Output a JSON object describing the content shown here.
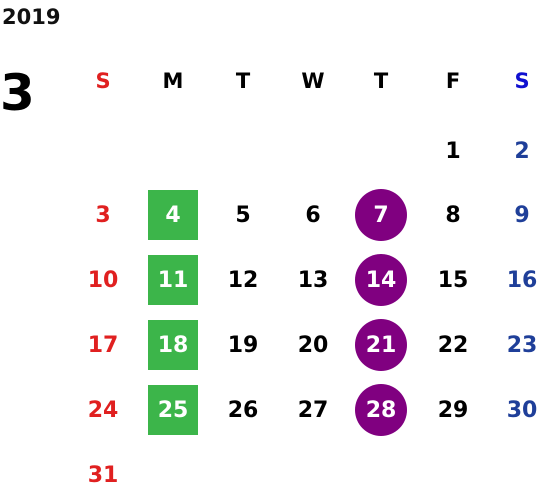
{
  "calendar": {
    "year": "2019",
    "month": "3",
    "weekdays": [
      "S",
      "M",
      "T",
      "W",
      "T",
      "F",
      "S"
    ],
    "colors": {
      "sunday": "#e02020",
      "saturday": "#1f3f99",
      "saturday_header": "#1010d0",
      "weekday": "#000000",
      "square_mark": "#3cb54a",
      "circle_mark": "#800080"
    },
    "weeks": [
      [
        {
          "d": ""
        },
        {
          "d": ""
        },
        {
          "d": ""
        },
        {
          "d": ""
        },
        {
          "d": ""
        },
        {
          "d": "1"
        },
        {
          "d": "2"
        }
      ],
      [
        {
          "d": "3"
        },
        {
          "d": "4",
          "mark": "square"
        },
        {
          "d": "5"
        },
        {
          "d": "6"
        },
        {
          "d": "7",
          "mark": "circle"
        },
        {
          "d": "8"
        },
        {
          "d": "9"
        }
      ],
      [
        {
          "d": "10"
        },
        {
          "d": "11",
          "mark": "square"
        },
        {
          "d": "12"
        },
        {
          "d": "13"
        },
        {
          "d": "14",
          "mark": "circle"
        },
        {
          "d": "15"
        },
        {
          "d": "16"
        }
      ],
      [
        {
          "d": "17"
        },
        {
          "d": "18",
          "mark": "square"
        },
        {
          "d": "19"
        },
        {
          "d": "20"
        },
        {
          "d": "21",
          "mark": "circle"
        },
        {
          "d": "22"
        },
        {
          "d": "23"
        }
      ],
      [
        {
          "d": "24"
        },
        {
          "d": "25",
          "mark": "square"
        },
        {
          "d": "26"
        },
        {
          "d": "27"
        },
        {
          "d": "28",
          "mark": "circle"
        },
        {
          "d": "29"
        },
        {
          "d": "30"
        }
      ],
      [
        {
          "d": "31"
        },
        {
          "d": ""
        },
        {
          "d": ""
        },
        {
          "d": ""
        },
        {
          "d": ""
        },
        {
          "d": ""
        },
        {
          "d": ""
        }
      ]
    ]
  }
}
